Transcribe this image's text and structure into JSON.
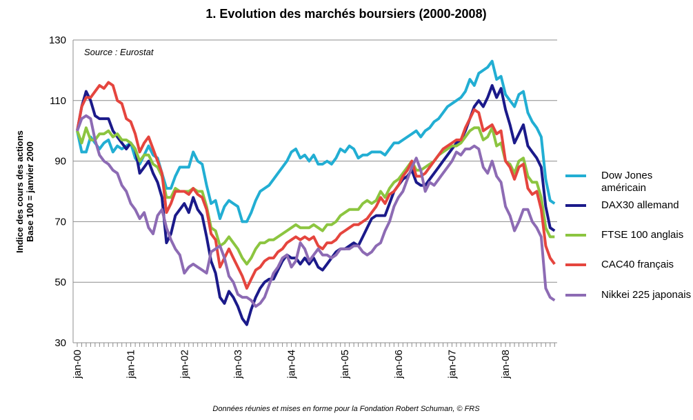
{
  "chart_data": {
    "type": "line",
    "title": "1. Evolution des marchés boursiers (2000-2008)",
    "ylabel": [
      "Indice des cours des actions",
      "Base 100 = janvier 2000"
    ],
    "annotation": "Source : Eurostat",
    "footer": "Données réunies et mises en forme pour la Fondation Robert Schuman, © FRS",
    "categories": [
      "jan-00",
      null,
      null,
      null,
      null,
      null,
      null,
      null,
      null,
      null,
      null,
      null,
      "jan-01",
      null,
      null,
      null,
      null,
      null,
      null,
      null,
      null,
      null,
      null,
      null,
      "jan-02",
      null,
      null,
      null,
      null,
      null,
      null,
      null,
      null,
      null,
      null,
      null,
      "jan-03",
      null,
      null,
      null,
      null,
      null,
      null,
      null,
      null,
      null,
      null,
      null,
      "jan-04",
      null,
      null,
      null,
      null,
      null,
      null,
      null,
      null,
      null,
      null,
      null,
      "jan-05",
      null,
      null,
      null,
      null,
      null,
      null,
      null,
      null,
      null,
      null,
      null,
      "jan-06",
      null,
      null,
      null,
      null,
      null,
      null,
      null,
      null,
      null,
      null,
      null,
      "jan-07",
      null,
      null,
      null,
      null,
      null,
      null,
      null,
      null,
      null,
      null,
      null,
      "jan-08",
      null,
      null,
      null,
      null,
      null,
      null,
      null,
      null,
      null,
      null,
      null
    ],
    "ylim": [
      30,
      130
    ],
    "yticks": [
      30,
      50,
      70,
      90,
      110,
      130
    ],
    "grid": true,
    "legend": "right",
    "series": [
      {
        "name": "Dow Jones américain",
        "color": "#22aed3",
        "values": [
          100,
          93,
          93,
          98,
          96,
          94,
          96,
          97,
          93,
          95,
          94,
          95,
          96,
          91,
          89,
          92,
          95,
          92,
          91,
          86,
          81,
          81,
          85,
          88,
          88,
          88,
          93,
          90,
          89,
          82,
          76,
          77,
          71,
          75,
          77,
          76,
          75,
          70,
          70,
          73,
          77,
          80,
          81,
          82,
          84,
          86,
          88,
          90,
          93,
          94,
          91,
          92,
          90,
          92,
          89,
          89,
          90,
          89,
          91,
          94,
          93,
          95,
          94,
          91,
          92,
          92,
          93,
          93,
          93,
          92,
          94,
          96,
          96,
          97,
          98,
          99,
          100,
          98,
          100,
          101,
          103,
          104,
          106,
          108,
          109,
          110,
          111,
          113,
          117,
          115,
          119,
          120,
          121,
          123,
          117,
          118,
          112,
          110,
          108,
          112,
          113,
          106,
          103,
          101,
          98,
          84,
          77,
          76
        ]
      },
      {
        "name": "DAX30 allemand",
        "color": "#1b1a8a",
        "values": [
          100,
          108,
          113,
          110,
          105,
          104,
          104,
          104,
          100,
          98,
          96,
          94,
          96,
          94,
          86,
          88,
          90,
          86,
          83,
          78,
          63,
          66,
          72,
          74,
          76,
          73,
          78,
          74,
          72,
          65,
          57,
          53,
          45,
          43,
          47,
          45,
          42,
          38,
          36,
          41,
          45,
          48,
          50,
          51,
          51,
          54,
          57,
          59,
          58,
          58,
          56,
          58,
          56,
          58,
          55,
          54,
          56,
          58,
          60,
          61,
          61,
          62,
          63,
          62,
          65,
          68,
          71,
          72,
          72,
          72,
          76,
          80,
          82,
          84,
          85,
          87,
          83,
          82,
          82,
          84,
          86,
          88,
          90,
          92,
          94,
          96,
          97,
          100,
          104,
          108,
          110,
          108,
          111,
          115,
          111,
          114,
          107,
          102,
          96,
          99,
          102,
          95,
          93,
          91,
          88,
          75,
          68,
          67
        ]
      },
      {
        "name": "FTSE 100 anglais",
        "color": "#8cc540",
        "values": [
          100,
          96,
          101,
          97,
          97,
          99,
          99,
          100,
          98,
          99,
          97,
          97,
          96,
          94,
          90,
          92,
          92,
          89,
          88,
          85,
          78,
          78,
          81,
          80,
          80,
          80,
          81,
          80,
          80,
          75,
          68,
          67,
          62,
          63,
          65,
          63,
          61,
          58,
          56,
          58,
          61,
          63,
          63,
          64,
          64,
          65,
          66,
          67,
          68,
          69,
          68,
          68,
          68,
          69,
          68,
          67,
          69,
          69,
          70,
          72,
          73,
          74,
          74,
          74,
          76,
          77,
          76,
          77,
          80,
          78,
          81,
          83,
          84,
          86,
          88,
          90,
          87,
          87,
          88,
          89,
          90,
          92,
          93,
          94,
          95,
          95,
          96,
          98,
          100,
          101,
          101,
          97,
          98,
          101,
          95,
          96,
          90,
          89,
          86,
          90,
          91,
          85,
          83,
          83,
          78,
          68,
          65,
          65
        ]
      },
      {
        "name": "CAC40 français",
        "color": "#e5453e",
        "values": [
          100,
          108,
          111,
          111,
          113,
          115,
          114,
          116,
          115,
          110,
          109,
          104,
          103,
          99,
          93,
          96,
          98,
          94,
          90,
          86,
          73,
          76,
          80,
          80,
          80,
          79,
          81,
          79,
          78,
          74,
          66,
          64,
          55,
          58,
          61,
          58,
          55,
          52,
          48,
          51,
          54,
          55,
          57,
          58,
          58,
          60,
          61,
          63,
          64,
          65,
          64,
          65,
          64,
          65,
          62,
          61,
          63,
          63,
          64,
          66,
          67,
          68,
          69,
          69,
          70,
          71,
          73,
          75,
          78,
          76,
          79,
          80,
          82,
          85,
          87,
          90,
          85,
          85,
          86,
          88,
          90,
          92,
          94,
          95,
          96,
          97,
          97,
          101,
          104,
          107,
          106,
          100,
          101,
          102,
          99,
          100,
          90,
          88,
          84,
          88,
          89,
          81,
          79,
          80,
          74,
          62,
          58,
          56
        ]
      },
      {
        "name": "Nikkei 225 japonais",
        "color": "#8d6bb4",
        "values": [
          100,
          104,
          105,
          104,
          97,
          92,
          90,
          89,
          87,
          86,
          82,
          80,
          76,
          74,
          71,
          73,
          68,
          66,
          72,
          74,
          68,
          64,
          61,
          59,
          53,
          55,
          56,
          55,
          54,
          53,
          60,
          61,
          62,
          58,
          52,
          50,
          46,
          45,
          45,
          44,
          42,
          43,
          45,
          49,
          53,
          55,
          58,
          59,
          55,
          57,
          63,
          61,
          57,
          59,
          61,
          59,
          59,
          58,
          59,
          61,
          61,
          61,
          62,
          62,
          60,
          59,
          60,
          62,
          63,
          67,
          70,
          75,
          78,
          80,
          84,
          88,
          91,
          87,
          80,
          83,
          82,
          84,
          86,
          88,
          90,
          93,
          92,
          94,
          94,
          95,
          94,
          88,
          86,
          90,
          85,
          83,
          75,
          72,
          67,
          70,
          74,
          74,
          70,
          68,
          65,
          48,
          45,
          44
        ]
      }
    ]
  }
}
